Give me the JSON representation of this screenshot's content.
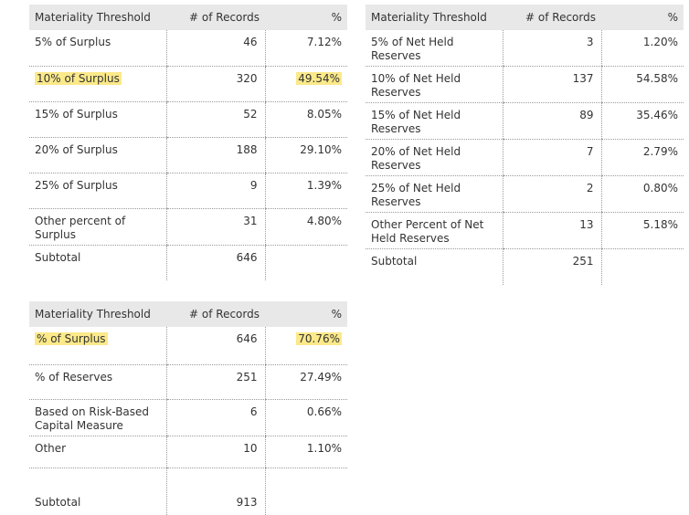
{
  "tables": [
    {
      "header": {
        "threshold": "Materiality Threshold",
        "records": "# of Records",
        "percent": "%"
      },
      "rows": [
        {
          "label": "5% of Surplus",
          "records": "46",
          "percent": "7.12%",
          "highlight": false
        },
        {
          "label": "10% of Surplus",
          "records": "320",
          "percent": "49.54%",
          "highlight": true
        },
        {
          "label": "15% of Surplus",
          "records": "52",
          "percent": "8.05%",
          "highlight": false
        },
        {
          "label": "20% of Surplus",
          "records": "188",
          "percent": "29.10%",
          "highlight": false
        },
        {
          "label": "25% of Surplus",
          "records": "9",
          "percent": "1.39%",
          "highlight": false
        },
        {
          "label": "Other percent of Surplus",
          "records": "31",
          "percent": "4.80%",
          "highlight": false
        },
        {
          "label": "Subtotal",
          "records": "646",
          "percent": "",
          "highlight": false
        }
      ]
    },
    {
      "header": {
        "threshold": "Materiality Threshold",
        "records": "# of Records",
        "percent": "%"
      },
      "rows": [
        {
          "label": "5% of Net Held Reserves",
          "records": "3",
          "percent": "1.20%",
          "highlight": false
        },
        {
          "label": "10% of Net Held Reserves",
          "records": "137",
          "percent": "54.58%",
          "highlight": false
        },
        {
          "label": "15% of Net Held Reserves",
          "records": "89",
          "percent": "35.46%",
          "highlight": false
        },
        {
          "label": "20% of Net Held Reserves",
          "records": "7",
          "percent": "2.79%",
          "highlight": false
        },
        {
          "label": "25% of Net Held Reserves",
          "records": "2",
          "percent": "0.80%",
          "highlight": false
        },
        {
          "label": "Other Percent of Net Held Reserves",
          "records": "13",
          "percent": "5.18%",
          "highlight": false
        },
        {
          "label": "Subtotal",
          "records": "251",
          "percent": "",
          "highlight": false
        }
      ]
    },
    {
      "header": {
        "threshold": "Materiality Threshold",
        "records": "# of Records",
        "percent": "%"
      },
      "rows": [
        {
          "label": "% of Surplus",
          "records": "646",
          "percent": "70.76%",
          "highlight": true
        },
        {
          "label": "% of Reserves",
          "records": "251",
          "percent": "27.49%",
          "highlight": false
        },
        {
          "label": "Based on Risk-Based Capital Measure",
          "records": "6",
          "percent": "0.66%",
          "highlight": false
        },
        {
          "label": "Other",
          "records": "10",
          "percent": "1.10%",
          "highlight": false
        },
        {
          "label": "Subtotal",
          "records": "913",
          "percent": "",
          "highlight": false
        }
      ]
    }
  ],
  "colors": {
    "highlight": "#fbe98a",
    "header_bg": "#e8e8e8"
  }
}
